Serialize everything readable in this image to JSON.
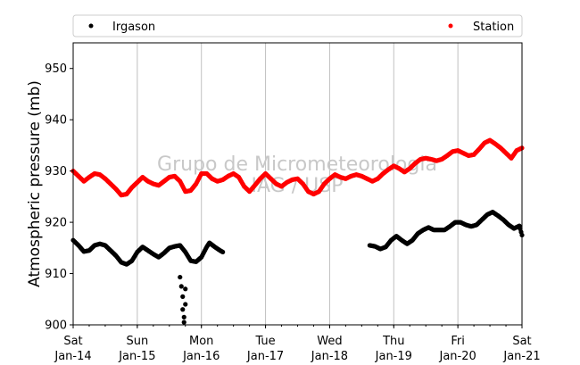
{
  "chart_data": {
    "type": "scatter",
    "ylabel": "Atmospheric pressure (mb)",
    "xlabel": "",
    "xlim": [
      "2017-01-14T00:00",
      "2017-01-21T00:00"
    ],
    "ylim": [
      900,
      955
    ],
    "yticks": [
      900,
      910,
      920,
      930,
      940,
      950
    ],
    "xticks": [
      {
        "x": "2017-01-14T00:00",
        "day": "Sat",
        "date": "Jan-14"
      },
      {
        "x": "2017-01-15T00:00",
        "day": "Sun",
        "date": "Jan-15"
      },
      {
        "x": "2017-01-16T00:00",
        "day": "Mon",
        "date": "Jan-16"
      },
      {
        "x": "2017-01-17T00:00",
        "day": "Tue",
        "date": "Jan-17"
      },
      {
        "x": "2017-01-18T00:00",
        "day": "Wed",
        "date": "Jan-18"
      },
      {
        "x": "2017-01-19T00:00",
        "day": "Thu",
        "date": "Jan-19"
      },
      {
        "x": "2017-01-20T00:00",
        "day": "Fri",
        "date": "Jan-20"
      },
      {
        "x": "2017-01-21T00:00",
        "day": "Sat",
        "date": "Jan-21"
      }
    ],
    "grid": "vertical",
    "legend_position": "top",
    "watermark": [
      "Grupo de Micrometeorologia",
      "IAG / USP"
    ],
    "series": [
      {
        "name": "Irgason",
        "color": "#000000",
        "segments": [
          [
            [
              "2017-01-14T00:00",
              916.5
            ],
            [
              "2017-01-14T02:00",
              915.5
            ],
            [
              "2017-01-14T04:00",
              914.3
            ],
            [
              "2017-01-14T06:00",
              914.5
            ],
            [
              "2017-01-14T08:00",
              915.5
            ],
            [
              "2017-01-14T10:00",
              915.8
            ],
            [
              "2017-01-14T12:00",
              915.5
            ],
            [
              "2017-01-14T14:00",
              914.5
            ],
            [
              "2017-01-14T16:00",
              913.5
            ],
            [
              "2017-01-14T18:00",
              912.2
            ],
            [
              "2017-01-14T20:00",
              911.8
            ],
            [
              "2017-01-14T22:00",
              912.5
            ],
            [
              "2017-01-15T00:00",
              914.2
            ],
            [
              "2017-01-15T02:00",
              915.2
            ],
            [
              "2017-01-15T04:00",
              914.5
            ],
            [
              "2017-01-15T06:00",
              913.8
            ],
            [
              "2017-01-15T08:00",
              913.2
            ],
            [
              "2017-01-15T10:00",
              914.0
            ],
            [
              "2017-01-15T12:00",
              915.0
            ],
            [
              "2017-01-15T14:00",
              915.3
            ],
            [
              "2017-01-15T16:00",
              915.5
            ],
            [
              "2017-01-15T18:00",
              914.2
            ],
            [
              "2017-01-15T20:00",
              912.5
            ],
            [
              "2017-01-15T22:00",
              912.3
            ],
            [
              "2017-01-16T00:00",
              913.2
            ],
            [
              "2017-01-16T02:00",
              915.2
            ],
            [
              "2017-01-16T03:00",
              916.0
            ],
            [
              "2017-01-16T05:00",
              915.2
            ],
            [
              "2017-01-16T07:00",
              914.5
            ],
            [
              "2017-01-16T08:00",
              914.2
            ]
          ],
          [
            [
              "2017-01-15T16:00",
              909.3
            ],
            [
              "2017-01-15T16:30",
              907.5
            ],
            [
              "2017-01-15T17:00",
              905.5
            ],
            [
              "2017-01-15T17:00",
              903.0
            ],
            [
              "2017-01-15T17:30",
              901.5
            ],
            [
              "2017-01-15T17:30",
              900.5
            ],
            [
              "2017-01-15T18:00",
              907.0
            ],
            [
              "2017-01-15T18:00",
              904.0
            ]
          ],
          [
            [
              "2017-01-18T15:00",
              915.5
            ],
            [
              "2017-01-18T17:00",
              915.3
            ],
            [
              "2017-01-18T19:00",
              914.8
            ],
            [
              "2017-01-18T21:00",
              915.2
            ],
            [
              "2017-01-18T23:00",
              916.5
            ],
            [
              "2017-01-19T01:00",
              917.3
            ],
            [
              "2017-01-19T03:00",
              916.5
            ],
            [
              "2017-01-19T05:00",
              915.8
            ],
            [
              "2017-01-19T07:00",
              916.5
            ],
            [
              "2017-01-19T09:00",
              917.8
            ],
            [
              "2017-01-19T11:00",
              918.5
            ],
            [
              "2017-01-19T13:00",
              919.0
            ],
            [
              "2017-01-19T15:00",
              918.5
            ],
            [
              "2017-01-19T17:00",
              918.5
            ],
            [
              "2017-01-19T19:00",
              918.5
            ],
            [
              "2017-01-19T21:00",
              919.2
            ],
            [
              "2017-01-19T23:00",
              920.0
            ],
            [
              "2017-01-20T01:00",
              920.0
            ],
            [
              "2017-01-20T03:00",
              919.5
            ],
            [
              "2017-01-20T05:00",
              919.2
            ],
            [
              "2017-01-20T07:00",
              919.5
            ],
            [
              "2017-01-20T09:00",
              920.5
            ],
            [
              "2017-01-20T11:00",
              921.5
            ],
            [
              "2017-01-20T13:00",
              922.0
            ],
            [
              "2017-01-20T15:00",
              921.3
            ],
            [
              "2017-01-20T17:00",
              920.5
            ],
            [
              "2017-01-20T19:00",
              919.5
            ],
            [
              "2017-01-20T21:00",
              918.8
            ],
            [
              "2017-01-20T23:00",
              919.3
            ],
            [
              "2017-01-21T00:00",
              917.5
            ]
          ]
        ]
      },
      {
        "name": "Station",
        "color": "#ff0000",
        "segments": [
          [
            [
              "2017-01-14T00:00",
              930.0
            ],
            [
              "2017-01-14T02:00",
              929.0
            ],
            [
              "2017-01-14T04:00",
              928.0
            ],
            [
              "2017-01-14T06:00",
              928.8
            ],
            [
              "2017-01-14T08:00",
              929.5
            ],
            [
              "2017-01-14T10:00",
              929.3
            ],
            [
              "2017-01-14T12:00",
              928.5
            ],
            [
              "2017-01-14T14:00",
              927.5
            ],
            [
              "2017-01-14T16:00",
              926.5
            ],
            [
              "2017-01-14T18:00",
              925.3
            ],
            [
              "2017-01-14T20:00",
              925.5
            ],
            [
              "2017-01-14T22:00",
              926.8
            ],
            [
              "2017-01-15T00:00",
              927.8
            ],
            [
              "2017-01-15T02:00",
              928.8
            ],
            [
              "2017-01-15T04:00",
              928.0
            ],
            [
              "2017-01-15T06:00",
              927.5
            ],
            [
              "2017-01-15T08:00",
              927.2
            ],
            [
              "2017-01-15T10:00",
              928.0
            ],
            [
              "2017-01-15T12:00",
              928.8
            ],
            [
              "2017-01-15T14:00",
              929.0
            ],
            [
              "2017-01-15T16:00",
              928.0
            ],
            [
              "2017-01-15T18:00",
              926.0
            ],
            [
              "2017-01-15T20:00",
              926.2
            ],
            [
              "2017-01-15T22:00",
              927.5
            ],
            [
              "2017-01-16T00:00",
              929.5
            ],
            [
              "2017-01-16T02:00",
              929.5
            ],
            [
              "2017-01-16T04:00",
              928.5
            ],
            [
              "2017-01-16T06:00",
              928.0
            ],
            [
              "2017-01-16T08:00",
              928.3
            ],
            [
              "2017-01-16T10:00",
              929.0
            ],
            [
              "2017-01-16T12:00",
              929.5
            ],
            [
              "2017-01-16T14:00",
              928.8
            ],
            [
              "2017-01-16T16:00",
              927.0
            ],
            [
              "2017-01-16T18:00",
              926.0
            ],
            [
              "2017-01-16T20:00",
              927.2
            ],
            [
              "2017-01-16T22:00",
              928.5
            ],
            [
              "2017-01-17T00:00",
              929.5
            ],
            [
              "2017-01-17T02:00",
              928.5
            ],
            [
              "2017-01-17T04:00",
              927.5
            ],
            [
              "2017-01-17T06:00",
              927.0
            ],
            [
              "2017-01-17T08:00",
              927.8
            ],
            [
              "2017-01-17T10:00",
              928.3
            ],
            [
              "2017-01-17T12:00",
              928.5
            ],
            [
              "2017-01-17T14:00",
              927.5
            ],
            [
              "2017-01-17T16:00",
              926.0
            ],
            [
              "2017-01-17T18:00",
              925.5
            ],
            [
              "2017-01-17T20:00",
              926.0
            ],
            [
              "2017-01-17T22:00",
              927.5
            ],
            [
              "2017-01-18T00:00",
              928.5
            ],
            [
              "2017-01-18T02:00",
              929.3
            ],
            [
              "2017-01-18T04:00",
              928.8
            ],
            [
              "2017-01-18T06:00",
              928.5
            ],
            [
              "2017-01-18T08:00",
              929.0
            ],
            [
              "2017-01-18T10:00",
              929.3
            ],
            [
              "2017-01-18T12:00",
              929.0
            ],
            [
              "2017-01-18T14:00",
              928.5
            ],
            [
              "2017-01-18T16:00",
              928.0
            ],
            [
              "2017-01-18T18:00",
              928.5
            ],
            [
              "2017-01-18T20:00",
              929.5
            ],
            [
              "2017-01-18T22:00",
              930.3
            ],
            [
              "2017-01-19T00:00",
              931.0
            ],
            [
              "2017-01-19T02:00",
              930.5
            ],
            [
              "2017-01-19T04:00",
              929.8
            ],
            [
              "2017-01-19T06:00",
              930.5
            ],
            [
              "2017-01-19T08:00",
              931.5
            ],
            [
              "2017-01-19T10:00",
              932.3
            ],
            [
              "2017-01-19T12:00",
              932.5
            ],
            [
              "2017-01-19T14:00",
              932.3
            ],
            [
              "2017-01-19T16:00",
              932.0
            ],
            [
              "2017-01-19T18:00",
              932.3
            ],
            [
              "2017-01-19T20:00",
              933.0
            ],
            [
              "2017-01-19T22:00",
              933.8
            ],
            [
              "2017-01-20T00:00",
              934.0
            ],
            [
              "2017-01-20T02:00",
              933.5
            ],
            [
              "2017-01-20T04:00",
              933.0
            ],
            [
              "2017-01-20T06:00",
              933.2
            ],
            [
              "2017-01-20T08:00",
              934.3
            ],
            [
              "2017-01-20T10:00",
              935.5
            ],
            [
              "2017-01-20T12:00",
              936.0
            ],
            [
              "2017-01-20T14:00",
              935.3
            ],
            [
              "2017-01-20T16:00",
              934.5
            ],
            [
              "2017-01-20T18:00",
              933.5
            ],
            [
              "2017-01-20T20:00",
              932.5
            ],
            [
              "2017-01-20T22:00",
              934.0
            ],
            [
              "2017-01-21T00:00",
              934.5
            ]
          ]
        ]
      }
    ]
  }
}
